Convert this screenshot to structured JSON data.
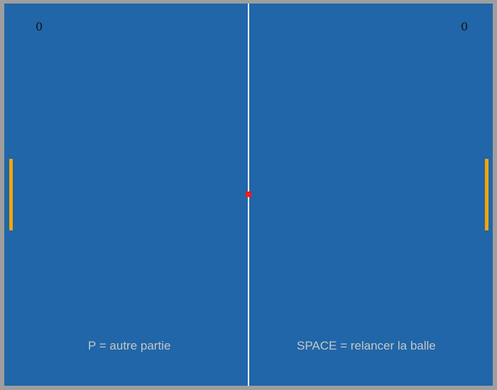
{
  "game": {
    "score_left": "0",
    "score_right": "0",
    "hint_left": "P = autre partie",
    "hint_right": "SPACE = relancer la balle"
  },
  "colors": {
    "frame": "#9e9e9e",
    "court": "#2066a8",
    "net": "#ffffff",
    "paddle": "#f5a500",
    "ball": "#ff1a1a",
    "score_text": "#111111",
    "hint_text": "#c7c7c7"
  }
}
